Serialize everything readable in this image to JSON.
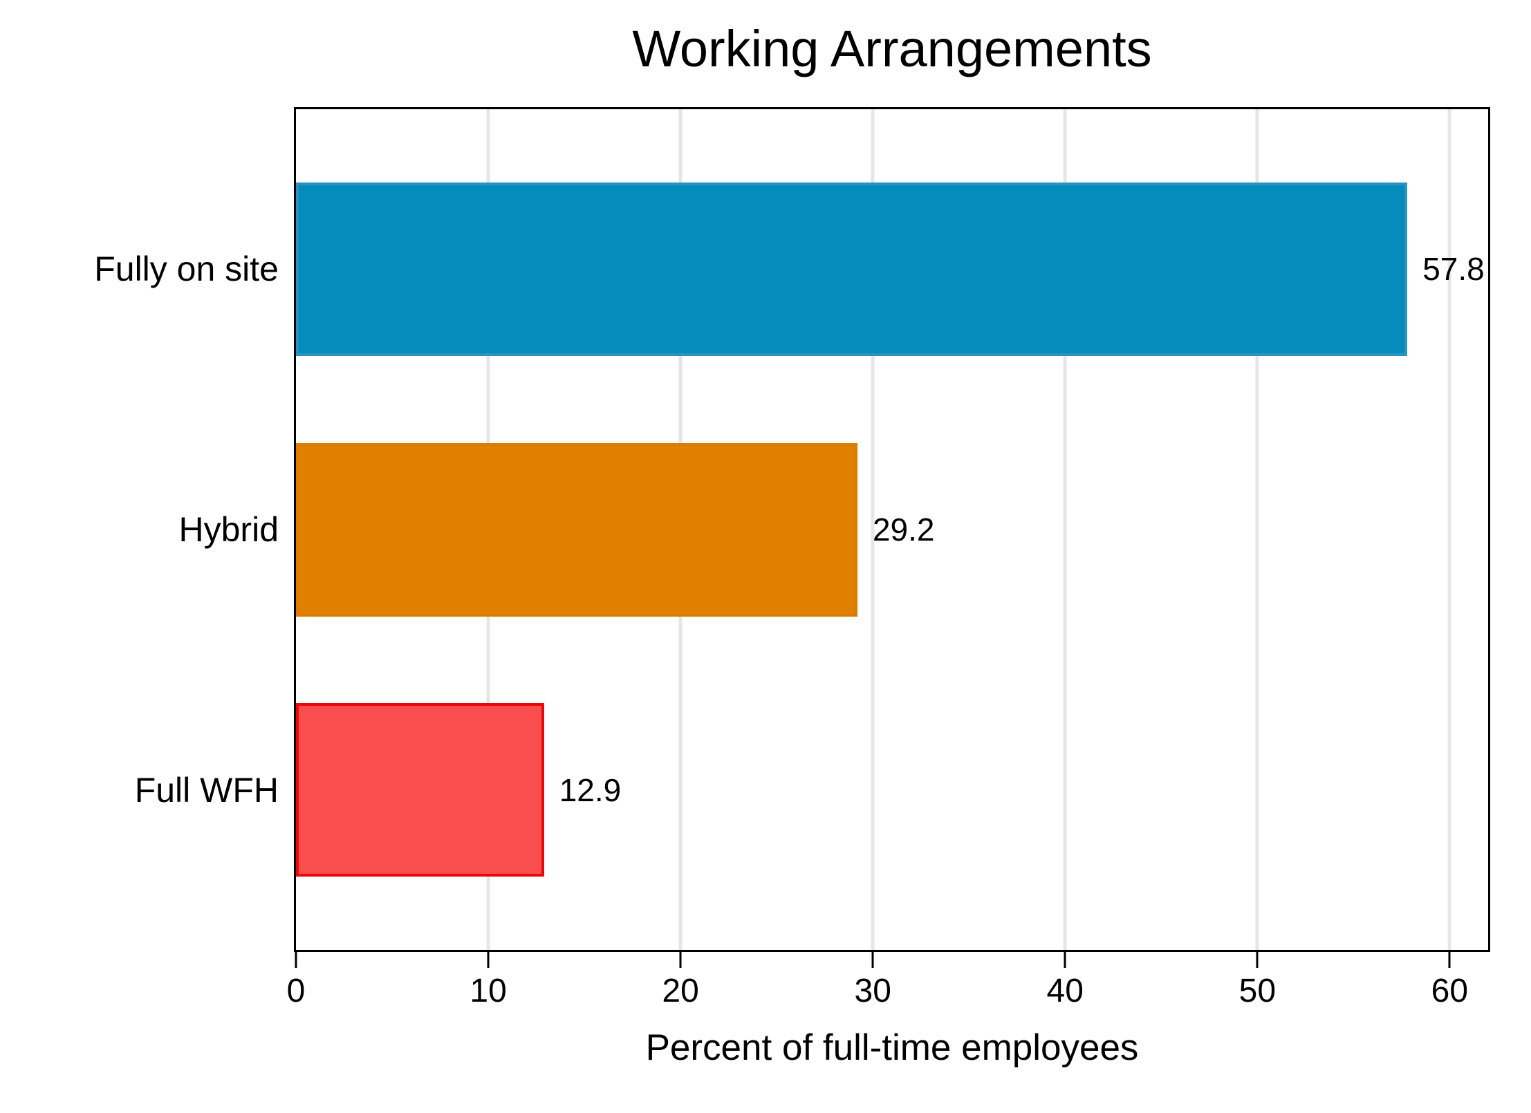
{
  "chart_data": {
    "type": "bar",
    "orientation": "horizontal",
    "title": "Working Arrangements",
    "xlabel": "Percent of full-time employees",
    "categories": [
      "Fully on site",
      "Hybrid",
      "Full WFH"
    ],
    "values": [
      57.8,
      29.2,
      12.9
    ],
    "value_labels": [
      "57.8",
      "29.2",
      "12.9"
    ],
    "bar_colors": [
      "#068cbc",
      "#e08000",
      "#fa4d4d"
    ],
    "bar_edge_colors": [
      "#2a93c1",
      "#d97c00",
      "#e90808"
    ],
    "xlim": [
      0,
      62
    ],
    "xticks": [
      0,
      10,
      20,
      30,
      40,
      50,
      60
    ],
    "grid": true,
    "gridline_color": "#e6e6e6",
    "spine_color": "#000000",
    "background_color": "#ffffff",
    "legend": "none"
  }
}
